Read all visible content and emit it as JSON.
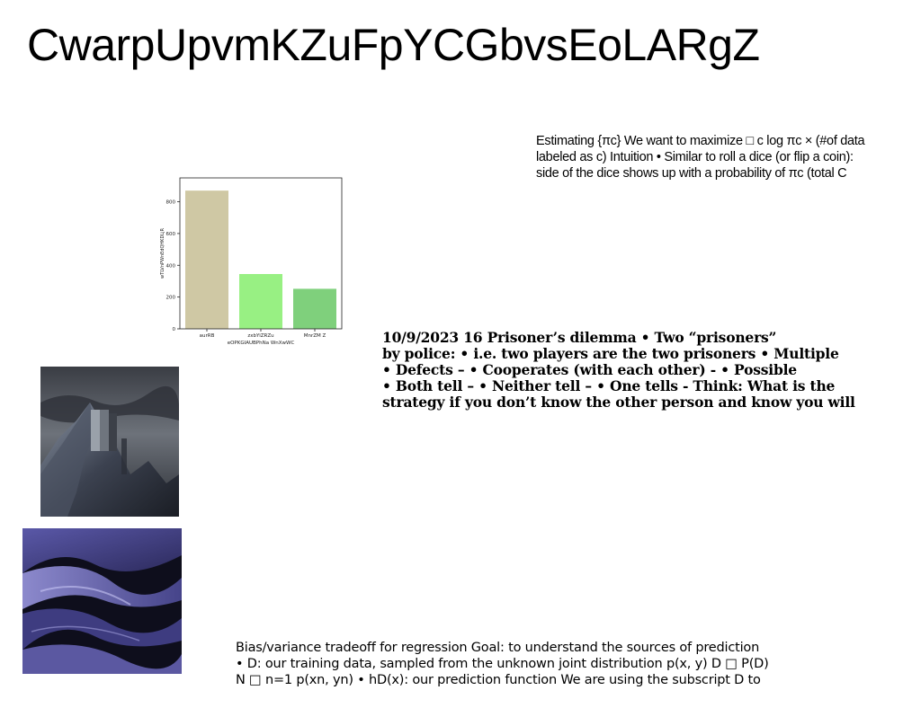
{
  "title": "CwarpUpvmKZuFpYCGbvsEoLARgZ",
  "para1": {
    "lines": [
      "Estimating {πc} We want to maximize □ c log πc × (#of data",
      "labeled as c) Intuition • Similar to roll a dice (or flip a coin):",
      "side of the dice shows up with a probability of πc (total C"
    ]
  },
  "para2": {
    "lines": [
      "10/9/2023 16 Prisoner’s dilemma • Two “prisoners”",
      "by police: • i.e. two players are the two prisoners • Multiple",
      "• Defects – • Cooperates (with each other) - • Possible",
      "• Both tell – • Neither tell – • One tells - Think: What is the",
      "strategy if you don’t know the other person and know you will"
    ]
  },
  "para3": {
    "lines": [
      "Bias/variance tradeoff for regression Goal: to understand the sources of prediction",
      "• D: our training data, sampled from the unknown joint distribution p(x, y) D □ P(D)",
      "N □ n=1 p(xn, yn) • hD(x): our prediction function We are using the subscript D to"
    ]
  },
  "chart_data": {
    "type": "bar",
    "categories": [
      "aurRB",
      "zxbYiZRZu",
      "MnrZM Z"
    ],
    "values": [
      870,
      345,
      252
    ],
    "colors": [
      "#cfc8a4",
      "#98f083",
      "#7fd07c"
    ],
    "xlabel": "eOPKGIAUBPhNa WnXwWC",
    "ylabel": "wTLVnPWnEdQHKDLjR",
    "ylim": [
      0,
      950
    ],
    "yticks": [
      0,
      200,
      400,
      600,
      800
    ]
  },
  "images": {
    "mountain": "mountain landscape with monolith",
    "waves": "abstract purple waves"
  }
}
